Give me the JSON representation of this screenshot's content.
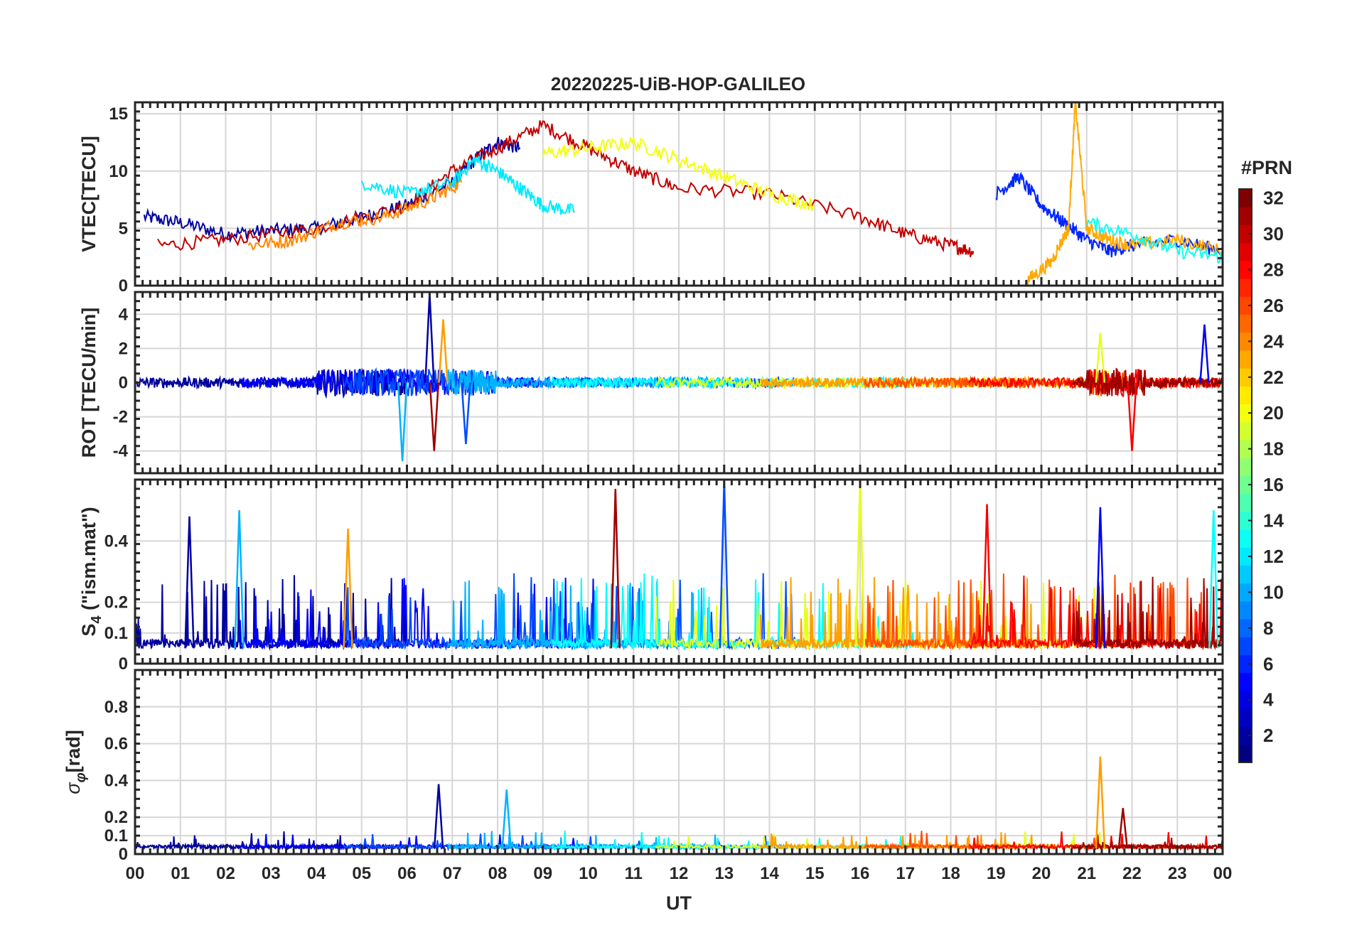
{
  "title": "20220225-UiB-HOP-GALILEO",
  "colorbar": {
    "label": "#PRN",
    "range": [
      1,
      32
    ],
    "ticks": [
      "2",
      "4",
      "6",
      "8",
      "10",
      "12",
      "14",
      "16",
      "18",
      "20",
      "22",
      "24",
      "26",
      "28",
      "30",
      "32"
    ]
  },
  "chart_data": [
    {
      "type": "line",
      "panel": "vtec",
      "ylabel": "VTEC[TECU]",
      "ylim": [
        0,
        16
      ],
      "yticks": [
        "0",
        "5",
        "10",
        "15"
      ],
      "xlabel": "",
      "xlim": [
        0,
        24
      ],
      "grid": true,
      "series": [
        {
          "name": "PRN 2",
          "x": [
            0.2,
            1,
            2,
            3,
            4,
            5,
            6,
            7,
            7.5,
            8,
            8.5
          ],
          "values": [
            6,
            5.5,
            4.5,
            4.8,
            5,
            6,
            7,
            9,
            11,
            12.5,
            12
          ]
        },
        {
          "name": "PRN 30",
          "x": [
            0.5,
            2,
            4,
            6,
            7,
            8,
            9,
            10,
            11,
            12,
            14,
            16,
            17,
            18,
            18.5
          ],
          "values": [
            3.5,
            4,
            5,
            7,
            10,
            12,
            14,
            12,
            10,
            8.5,
            8,
            6,
            4.5,
            3.5,
            3
          ]
        },
        {
          "name": "PRN 24",
          "x": [
            2.5,
            3.5,
            4.5,
            5.5,
            6.5,
            7.2
          ],
          "values": [
            3.5,
            4,
            5.5,
            6,
            7.5,
            9
          ]
        },
        {
          "name": "PRN 12",
          "x": [
            5,
            6,
            7,
            7.5,
            8,
            8.5,
            9,
            9.7
          ],
          "values": [
            9,
            8,
            9,
            11,
            10,
            8.5,
            7,
            6.5
          ]
        },
        {
          "name": "PRN 20",
          "x": [
            9,
            10,
            11,
            12,
            13,
            14,
            15
          ],
          "values": [
            11.5,
            12,
            12.5,
            11,
            9.5,
            8,
            7
          ]
        },
        {
          "name": "PRN 6",
          "x": [
            19,
            19.5,
            20,
            20.5,
            21,
            21.5,
            22,
            23,
            24
          ],
          "values": [
            8,
            9.5,
            7,
            5.5,
            4,
            3,
            3.5,
            4,
            3
          ]
        },
        {
          "name": "PRN 23",
          "x": [
            19.7,
            20.2,
            20.6,
            20.75,
            21,
            21.5,
            22,
            23,
            24
          ],
          "values": [
            0.5,
            2,
            5,
            16,
            5,
            4,
            3.5,
            4,
            3
          ]
        },
        {
          "name": "PRN 13",
          "x": [
            21,
            22,
            23,
            24
          ],
          "values": [
            5.5,
            4.5,
            3,
            2.5
          ]
        }
      ]
    },
    {
      "type": "line",
      "panel": "rot",
      "ylabel": "ROT [TECU/min]",
      "ylim": [
        -5.3,
        5.3
      ],
      "yticks": [
        "-4",
        "-2",
        "0",
        "2",
        "4"
      ],
      "xlim": [
        0,
        24
      ],
      "grid": true,
      "peaks": [
        {
          "x": 6.5,
          "value": 5.2
        },
        {
          "x": 5.9,
          "value": -4.6
        },
        {
          "x": 6.8,
          "value": 3.7
        },
        {
          "x": 6.6,
          "value": -4.0
        },
        {
          "x": 7.3,
          "value": -3.6
        },
        {
          "x": 21.3,
          "value": 2.9
        },
        {
          "x": 22.0,
          "value": -4.0
        },
        {
          "x": 23.6,
          "value": 3.4
        }
      ]
    },
    {
      "type": "line",
      "panel": "s4",
      "ylabel": "S4 (\"ism.mat\")",
      "ylabel_main": "S",
      "ylabel_sub": "4",
      "ylabel_rest": " (\"ism.mat\")",
      "ylim": [
        0,
        0.6
      ],
      "yticks": [
        "0",
        "0.1",
        "0.2",
        "0.4"
      ],
      "xlim": [
        0,
        24
      ],
      "grid": true,
      "baseline": 0.05,
      "peaks": [
        {
          "x": 1.2,
          "value": 0.48
        },
        {
          "x": 2.3,
          "value": 0.5
        },
        {
          "x": 4.7,
          "value": 0.44
        },
        {
          "x": 10.6,
          "value": 0.57
        },
        {
          "x": 13.0,
          "value": 0.6
        },
        {
          "x": 16.0,
          "value": 0.6
        },
        {
          "x": 18.8,
          "value": 0.52
        },
        {
          "x": 21.3,
          "value": 0.51
        },
        {
          "x": 23.8,
          "value": 0.5
        }
      ]
    },
    {
      "type": "line",
      "panel": "sigma_phi",
      "ylabel": "σφ[rad]",
      "ylabel_main": "σ",
      "ylabel_sub": "φ",
      "ylabel_rest": "[rad]",
      "ylim": [
        0,
        1
      ],
      "yticks": [
        "0",
        "0.1",
        "0.2",
        "0.4",
        "0.6",
        "0.8"
      ],
      "xlabel": "UT",
      "xlim": [
        0,
        24
      ],
      "xticks": [
        "00",
        "01",
        "02",
        "03",
        "04",
        "05",
        "06",
        "07",
        "08",
        "09",
        "10",
        "11",
        "12",
        "13",
        "14",
        "15",
        "16",
        "17",
        "18",
        "19",
        "20",
        "21",
        "22",
        "23",
        "00"
      ],
      "grid": true,
      "baseline": 0.03,
      "peaks": [
        {
          "x": 6.7,
          "value": 0.38
        },
        {
          "x": 8.2,
          "value": 0.35
        },
        {
          "x": 21.3,
          "value": 0.53
        },
        {
          "x": 21.8,
          "value": 0.25
        }
      ]
    }
  ]
}
